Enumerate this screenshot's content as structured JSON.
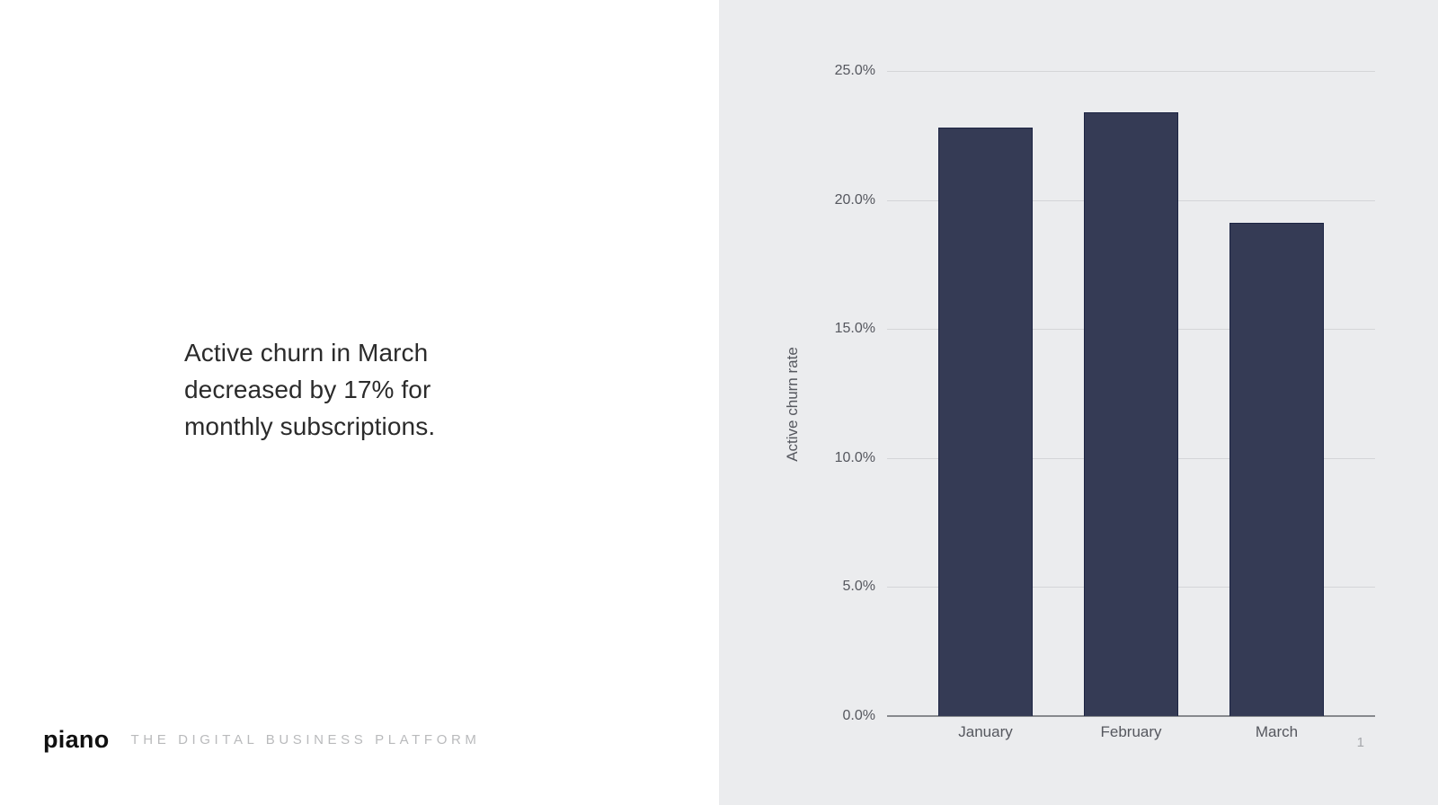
{
  "slide": {
    "page_number": "1"
  },
  "statement": {
    "lines": [
      "Active churn in March",
      "decreased by 17% for",
      "monthly subscriptions."
    ],
    "full_text": "Active churn in March decreased by 17% for monthly subscriptions."
  },
  "footer": {
    "logo_text": "piano",
    "tagline": "THE DIGITAL BUSINESS PLATFORM"
  },
  "chart_data": {
    "type": "bar",
    "title": "",
    "categories": [
      "January",
      "February",
      "March"
    ],
    "values": [
      22.8,
      23.4,
      19.1
    ],
    "value_unit": "%",
    "xlabel": "",
    "ylabel": "Active churn rate",
    "ylim": [
      0,
      25
    ],
    "ytick_step": 5,
    "ytick_labels": [
      "0.0%",
      "5.0%",
      "10.0%",
      "15.0%",
      "20.0%",
      "25.0%"
    ],
    "grid": true,
    "legend": "none",
    "colors": {
      "bar_fill": "#353b55",
      "bar_border": "#1c2443",
      "gridline": "#d4d5d8",
      "axis_line": "#87898d",
      "tick_label": "#55575e",
      "panel_background": "#ebecee"
    }
  }
}
